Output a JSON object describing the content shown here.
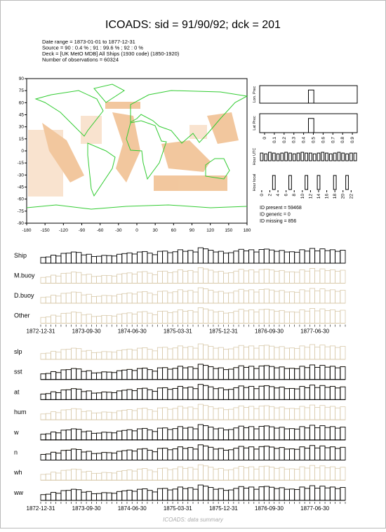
{
  "title": "ICOADS: sid = 91/90/92; dck = 201",
  "info": [
    "Date range = 1873-01-01 to 1877-12-31",
    "Source = 90 : 0.4 % ; 91 : 99.6 % ; 92 : 0 %",
    "Deck   = [UK MetO MDB] All Ships (1930 code) (1850-1920)",
    "Number of observations  = 60324"
  ],
  "map": {
    "xlim": [
      -180,
      180
    ],
    "ylim": [
      -90,
      90
    ],
    "xticks": [
      -180,
      -150,
      -120,
      -90,
      -60,
      -30,
      0,
      30,
      60,
      90,
      120,
      150,
      180
    ],
    "yticks": [
      -90,
      -75,
      -60,
      -45,
      -30,
      -15,
      0,
      15,
      30,
      45,
      60,
      75,
      90
    ]
  },
  "lon_prec": {
    "label": "Lon. Prec",
    "values": [
      0,
      0,
      0,
      0,
      0,
      100,
      0,
      0,
      0,
      0
    ]
  },
  "lat_prec": {
    "label": "Lat Prec",
    "values": [
      0,
      0,
      0,
      0,
      0,
      100,
      0,
      0,
      0,
      0
    ]
  },
  "prec_ticks": [
    0,
    0.1,
    0.2,
    0.3,
    0.4,
    0.5,
    0.6,
    0.7,
    0.8,
    0.9
  ],
  "hour_utc": {
    "label": "Hour UTC",
    "values": [
      10,
      9,
      11,
      10,
      9,
      10,
      11,
      10,
      9,
      10,
      11,
      10,
      10,
      9,
      10,
      11,
      10,
      9,
      10,
      11,
      10,
      9,
      10,
      10
    ]
  },
  "hour_local": {
    "label": "Hour local",
    "values": [
      0,
      0,
      0,
      10,
      0,
      0,
      0,
      10,
      0,
      0,
      0,
      10,
      0,
      0,
      10,
      0,
      0,
      0,
      10,
      0,
      0,
      10,
      0,
      0
    ]
  },
  "hour_ticks": [
    0,
    2,
    4,
    6,
    8,
    10,
    12,
    14,
    16,
    18,
    20,
    22
  ],
  "id_stats": [
    "ID present = 59468",
    "ID generic = 0",
    "ID missing = 856"
  ],
  "date_ticks": [
    "1872-12-31",
    "1873-09-30",
    "1874-06-30",
    "1875-03-31",
    "1875-12-31",
    "1876-09-30",
    "1877-06-30"
  ],
  "platform_panels": [
    {
      "name": "Ship",
      "values": [
        520,
        560,
        720,
        640,
        880,
        900,
        1000,
        960,
        740,
        800,
        600,
        620,
        700,
        680,
        640,
        800,
        860,
        920,
        820,
        1000,
        1040,
        900,
        760,
        1060,
        1080,
        940,
        1020,
        1200,
        1060,
        1140,
        1000,
        1380,
        1280,
        1160,
        1000,
        1060,
        900,
        940,
        1080,
        1240,
        1100,
        1200,
        1000,
        1220,
        1260,
        1180,
        1060,
        1140,
        1000,
        1020,
        980,
        1200,
        1080,
        1320,
        1100,
        1280,
        1120,
        1200,
        1060,
        1160
      ]
    },
    {
      "name": "M.buoy"
    },
    {
      "name": "D.buoy"
    },
    {
      "name": "Other"
    }
  ],
  "variable_panels": [
    {
      "name": "slp"
    },
    {
      "name": "sst",
      "values": [
        500,
        540,
        700,
        620,
        860,
        880,
        980,
        940,
        720,
        780,
        580,
        600,
        680,
        660,
        620,
        780,
        840,
        900,
        800,
        980,
        1020,
        880,
        740,
        1040,
        1060,
        920,
        1000,
        1180,
        1040,
        1120,
        980,
        1360,
        1260,
        1140,
        980,
        1040,
        880,
        920,
        1060,
        1220,
        1080,
        1180,
        980,
        1200,
        1240,
        1160,
        1040,
        1120,
        980,
        1000,
        960,
        1180,
        1060,
        1300,
        1080,
        1260,
        1100,
        1180,
        1040,
        1140
      ]
    },
    {
      "name": "at",
      "values": [
        500,
        540,
        700,
        620,
        860,
        880,
        980,
        940,
        720,
        780,
        580,
        600,
        680,
        660,
        620,
        780,
        840,
        900,
        800,
        980,
        1020,
        880,
        740,
        1040,
        1060,
        920,
        1000,
        1180,
        1040,
        1120,
        980,
        1360,
        1260,
        1140,
        980,
        1040,
        880,
        920,
        1060,
        1220,
        1080,
        1180,
        980,
        1200,
        1240,
        1160,
        1040,
        1120,
        980,
        1000,
        960,
        1180,
        1060,
        1300,
        1080,
        1260,
        1100,
        1180,
        1040,
        1140
      ]
    },
    {
      "name": "hum"
    },
    {
      "name": "w",
      "values": [
        510,
        550,
        710,
        630,
        870,
        890,
        990,
        950,
        730,
        790,
        590,
        610,
        690,
        670,
        630,
        790,
        850,
        910,
        810,
        990,
        1030,
        890,
        750,
        1050,
        1070,
        930,
        1010,
        1190,
        1050,
        1130,
        990,
        1370,
        1270,
        1150,
        990,
        1050,
        890,
        930,
        1070,
        1230,
        1090,
        1190,
        990,
        1210,
        1250,
        1170,
        1050,
        1130,
        990,
        1010,
        970,
        1190,
        1070,
        1310,
        1090,
        1270,
        1110,
        1190,
        1050,
        1150
      ]
    },
    {
      "name": "n",
      "values": [
        500,
        540,
        700,
        620,
        860,
        880,
        980,
        940,
        720,
        780,
        580,
        600,
        680,
        660,
        620,
        780,
        840,
        900,
        800,
        980,
        1020,
        880,
        740,
        1040,
        1060,
        920,
        1000,
        1180,
        1040,
        1120,
        980,
        1360,
        1260,
        1140,
        980,
        1040,
        880,
        920,
        1060,
        1220,
        1080,
        1180,
        980,
        1200,
        1240,
        1160,
        1040,
        1120,
        980,
        1000,
        960,
        1180,
        1060,
        1300,
        1080,
        1260,
        1100,
        1180,
        1040,
        1140
      ]
    },
    {
      "name": "wh"
    },
    {
      "name": "ww",
      "values": [
        510,
        550,
        710,
        630,
        870,
        890,
        990,
        950,
        730,
        790,
        590,
        610,
        690,
        670,
        630,
        790,
        850,
        910,
        810,
        990,
        1030,
        890,
        750,
        1050,
        1070,
        930,
        1010,
        1190,
        1050,
        1130,
        990,
        1370,
        1270,
        1150,
        990,
        1050,
        890,
        930,
        1070,
        1230,
        1090,
        1190,
        990,
        1210,
        1250,
        1170,
        1050,
        1130,
        990,
        1010,
        970,
        1190,
        1070,
        1310,
        1090,
        1270,
        1110,
        1190,
        1050,
        1150
      ]
    }
  ],
  "footer": "ICOADS: data summary"
}
